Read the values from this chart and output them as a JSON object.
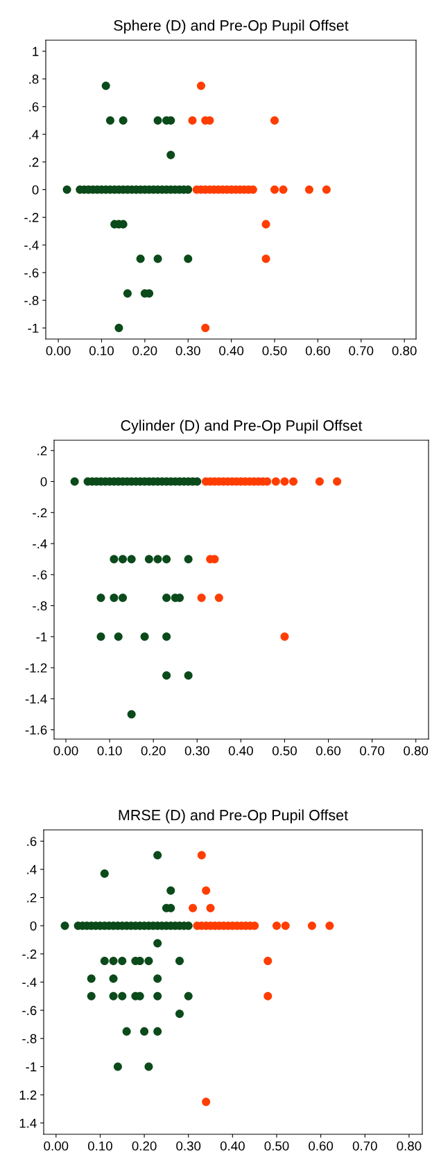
{
  "chart_data": [
    {
      "type": "scatter",
      "title": "Sphere (D) and Pre-Op Pupil Offset",
      "marker": "circle",
      "xlim": [
        -0.029,
        0.827
      ],
      "xticks": [
        {
          "value": 0,
          "label": "0.00"
        },
        {
          "value": 0.1,
          "label": "0.10"
        },
        {
          "value": 0.2,
          "label": "0.20"
        },
        {
          "value": 0.3,
          "label": "0.30"
        },
        {
          "value": 0.4,
          "label": "0.40"
        },
        {
          "value": 0.5,
          "label": "0.50"
        },
        {
          "value": 0.6,
          "label": "0.60"
        },
        {
          "value": 0.7,
          "label": "0.70"
        },
        {
          "value": 0.8,
          "label": "0.80"
        }
      ],
      "ylim": [
        -1.08,
        1.08
      ],
      "yticks": [
        1,
        {
          "value": 0.8,
          "label": ".8"
        },
        {
          "value": 0.6,
          "label": ".6"
        },
        {
          "value": 0.4,
          "label": ".4"
        },
        {
          "value": 0.2,
          "label": ".2"
        },
        0,
        {
          "value": -0.2,
          "label": "-.2"
        },
        {
          "value": -0.4,
          "label": "-.4"
        },
        {
          "value": -0.6,
          "label": "-.6"
        },
        {
          "value": -0.8,
          "label": "-.8"
        },
        -1
      ],
      "series": [
        {
          "color": "#0b4a1a",
          "x": [
            0.11,
            0.12,
            0.15,
            0.23,
            0.25,
            0.26,
            0.26,
            0.13,
            0.14,
            0.15,
            0.19,
            0.23,
            0.3,
            0.16,
            0.2,
            0.21,
            0.14,
            0.02,
            0.05,
            0.06,
            0.07,
            0.08,
            0.09,
            0.1,
            0.11,
            0.12,
            0.13,
            0.14,
            0.15,
            0.16,
            0.17,
            0.18,
            0.19,
            0.2,
            0.21,
            0.22,
            0.23,
            0.24,
            0.25,
            0.26,
            0.27,
            0.28,
            0.29,
            0.3
          ],
          "values": [
            0.75,
            0.5,
            0.5,
            0.5,
            0.5,
            0.5,
            0.25,
            -0.25,
            -0.25,
            -0.25,
            -0.5,
            -0.5,
            -0.5,
            -0.75,
            -0.75,
            -0.75,
            -1,
            0,
            0,
            0,
            0,
            0,
            0,
            0,
            0,
            0,
            0,
            0,
            0,
            0,
            0,
            0,
            0,
            0,
            0,
            0,
            0,
            0,
            0,
            0,
            0,
            0,
            0,
            0
          ]
        },
        {
          "color": "#ff3d00",
          "x": [
            0.33,
            0.31,
            0.34,
            0.35,
            0.5,
            0.48,
            0.48,
            0.34,
            0.32,
            0.33,
            0.34,
            0.35,
            0.36,
            0.37,
            0.38,
            0.39,
            0.4,
            0.41,
            0.42,
            0.43,
            0.44,
            0.45,
            0.5,
            0.52,
            0.58,
            0.62
          ],
          "values": [
            0.75,
            0.5,
            0.5,
            0.5,
            0.5,
            -0.25,
            -0.5,
            -1,
            0,
            0,
            0,
            0,
            0,
            0,
            0,
            0,
            0,
            0,
            0,
            0,
            0,
            0,
            0,
            0,
            0,
            0
          ]
        }
      ]
    },
    {
      "type": "scatter",
      "title": "Cylinder (D) and Pre-Op Pupil Offset",
      "marker": "circle",
      "xlim": [
        -0.027,
        0.829
      ],
      "xticks": [
        {
          "value": 0,
          "label": "0.00"
        },
        {
          "value": 0.1,
          "label": "0.10"
        },
        {
          "value": 0.2,
          "label": "0.20"
        },
        {
          "value": 0.3,
          "label": "0.30"
        },
        {
          "value": 0.4,
          "label": "0.40"
        },
        {
          "value": 0.5,
          "label": "0.50"
        },
        {
          "value": 0.6,
          "label": "0.60"
        },
        {
          "value": 0.7,
          "label": "0.70"
        },
        {
          "value": 0.8,
          "label": "0.80"
        }
      ],
      "ylim": [
        -1.66,
        0.266
      ],
      "yticks": [
        {
          "value": 0.2,
          "label": ".2"
        },
        0,
        {
          "value": -0.2,
          "label": "-.2"
        },
        {
          "value": -0.4,
          "label": "-.4"
        },
        {
          "value": -0.6,
          "label": "-.6"
        },
        {
          "value": -0.8,
          "label": "-.8"
        },
        -1,
        -1.2,
        -1.4,
        -1.6
      ],
      "series": [
        {
          "color": "#0b4a1a",
          "x": [
            0.11,
            0.13,
            0.15,
            0.19,
            0.21,
            0.23,
            0.28,
            0.08,
            0.11,
            0.13,
            0.23,
            0.25,
            0.26,
            0.08,
            0.12,
            0.18,
            0.23,
            0.23,
            0.28,
            0.15,
            0.02,
            0.05,
            0.06,
            0.07,
            0.08,
            0.09,
            0.1,
            0.11,
            0.12,
            0.13,
            0.14,
            0.15,
            0.16,
            0.17,
            0.18,
            0.19,
            0.2,
            0.21,
            0.22,
            0.23,
            0.24,
            0.25,
            0.26,
            0.27,
            0.28,
            0.29,
            0.3
          ],
          "values": [
            -0.5,
            -0.5,
            -0.5,
            -0.5,
            -0.5,
            -0.5,
            -0.5,
            -0.75,
            -0.75,
            -0.75,
            -0.75,
            -0.75,
            -0.75,
            -1,
            -1,
            -1,
            -1,
            -1.25,
            -1.25,
            -1.5,
            0,
            0,
            0,
            0,
            0,
            0,
            0,
            0,
            0,
            0,
            0,
            0,
            0,
            0,
            0,
            0,
            0,
            0,
            0,
            0,
            0,
            0,
            0,
            0,
            0,
            0,
            0
          ]
        },
        {
          "color": "#ff3d00",
          "x": [
            0.33,
            0.34,
            0.31,
            0.35,
            0.5,
            0.32,
            0.33,
            0.34,
            0.35,
            0.36,
            0.37,
            0.38,
            0.39,
            0.4,
            0.41,
            0.42,
            0.43,
            0.44,
            0.45,
            0.46,
            0.48,
            0.5,
            0.52,
            0.58,
            0.62
          ],
          "values": [
            -0.5,
            -0.5,
            -0.75,
            -0.75,
            -1,
            0,
            0,
            0,
            0,
            0,
            0,
            0,
            0,
            0,
            0,
            0,
            0,
            0,
            0,
            0,
            0,
            0,
            0,
            0,
            0
          ]
        }
      ]
    },
    {
      "type": "scatter",
      "title": "MRSE (D) and Pre-Op Pupil Offset",
      "marker": "circle",
      "xlim": [
        -0.028,
        0.83
      ],
      "xticks": [
        {
          "value": 0,
          "label": "0.00"
        },
        {
          "value": 0.1,
          "label": "0.10"
        },
        {
          "value": 0.2,
          "label": "0.20"
        },
        {
          "value": 0.3,
          "label": "0.30"
        },
        {
          "value": 0.4,
          "label": "0.40"
        },
        {
          "value": 0.5,
          "label": "0.50"
        },
        {
          "value": 0.6,
          "label": "0.60"
        },
        {
          "value": 0.7,
          "label": "0.70"
        },
        {
          "value": 0.8,
          "label": "0.80"
        }
      ],
      "ylim": [
        -1.48,
        0.68
      ],
      "yticks": [
        {
          "value": 0.6,
          "label": ".6"
        },
        {
          "value": 0.4,
          "label": ".4"
        },
        {
          "value": 0.2,
          "label": ".2"
        },
        0,
        {
          "value": -0.2,
          "label": "-.2"
        },
        {
          "value": -0.4,
          "label": "-.4"
        },
        {
          "value": -0.6,
          "label": "-.6"
        },
        {
          "value": -0.8,
          "label": "-.8"
        },
        -1,
        {
          "value": -1.2,
          "label": "1.2"
        },
        {
          "value": -1.4,
          "label": "1.4"
        }
      ],
      "series": [
        {
          "color": "#0b4a1a",
          "x": [
            0.23,
            0.11,
            0.26,
            0.25,
            0.26,
            0.23,
            0.11,
            0.13,
            0.15,
            0.18,
            0.19,
            0.21,
            0.28,
            0.08,
            0.13,
            0.23,
            0.08,
            0.13,
            0.15,
            0.18,
            0.19,
            0.23,
            0.3,
            0.28,
            0.16,
            0.2,
            0.23,
            0.14,
            0.21,
            0.02,
            0.05,
            0.06,
            0.07,
            0.08,
            0.09,
            0.1,
            0.11,
            0.12,
            0.13,
            0.14,
            0.15,
            0.16,
            0.17,
            0.18,
            0.19,
            0.2,
            0.21,
            0.22,
            0.23,
            0.24,
            0.25,
            0.26,
            0.27,
            0.28,
            0.29,
            0.3
          ],
          "values": [
            0.5,
            0.37,
            0.25,
            0.125,
            0.125,
            -0.125,
            -0.25,
            -0.25,
            -0.25,
            -0.25,
            -0.25,
            -0.25,
            -0.25,
            -0.375,
            -0.375,
            -0.375,
            -0.5,
            -0.5,
            -0.5,
            -0.5,
            -0.5,
            -0.5,
            -0.5,
            -0.625,
            -0.75,
            -0.75,
            -0.75,
            -1,
            -1,
            0,
            0,
            0,
            0,
            0,
            0,
            0,
            0,
            0,
            0,
            0,
            0,
            0,
            0,
            0,
            0,
            0,
            0,
            0,
            0,
            0,
            0,
            0,
            0,
            0,
            0,
            0
          ]
        },
        {
          "color": "#ff3d00",
          "x": [
            0.33,
            0.34,
            0.31,
            0.35,
            0.48,
            0.48,
            0.34,
            0.32,
            0.33,
            0.34,
            0.35,
            0.36,
            0.37,
            0.38,
            0.39,
            0.4,
            0.41,
            0.42,
            0.43,
            0.44,
            0.45,
            0.5,
            0.52,
            0.58,
            0.62
          ],
          "values": [
            0.5,
            0.25,
            0.125,
            0.125,
            -0.25,
            -0.5,
            -1.25,
            0,
            0,
            0,
            0,
            0,
            0,
            0,
            0,
            0,
            0,
            0,
            0,
            0,
            0,
            0,
            0,
            0,
            0
          ]
        }
      ]
    }
  ]
}
